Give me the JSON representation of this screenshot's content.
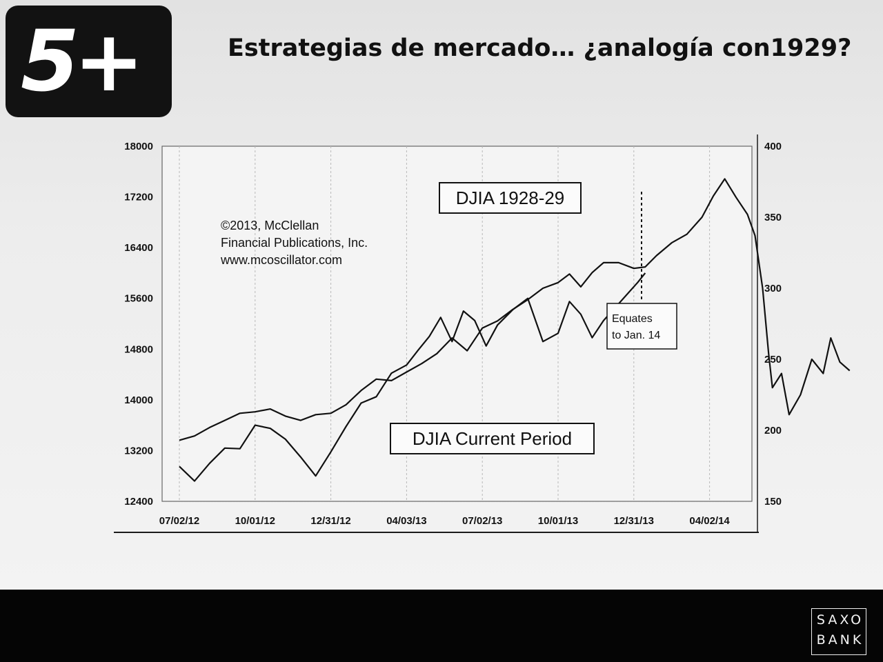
{
  "slide": {
    "logo_text": "5+",
    "title": "Estrategias de mercado… ¿analogía con1929?",
    "brand_line1": "SAXO",
    "brand_line2": "BANK"
  },
  "chart_data": {
    "type": "line",
    "title": "",
    "annotations": {
      "copyright": [
        "©2013, McClellan",
        "Financial Publications, Inc.",
        "www.mcoscillator.com"
      ],
      "callout": [
        "Equates",
        "to Jan. 14"
      ]
    },
    "left_axis": {
      "range": [
        12400,
        18000
      ],
      "ticks": [
        "18000",
        "17200",
        "16400",
        "15600",
        "14800",
        "14000",
        "13200",
        "12400"
      ]
    },
    "right_axis": {
      "range": [
        150,
        400
      ],
      "ticks": [
        "400",
        "350",
        "300",
        "250",
        "200",
        "150"
      ]
    },
    "x_axis": {
      "ticks": [
        "07/02/12",
        "10/01/12",
        "12/31/12",
        "04/03/13",
        "07/02/13",
        "10/01/13",
        "12/31/13",
        "04/02/14"
      ],
      "grid": "vertical dashed lines at each date tick"
    },
    "series": [
      {
        "name": "DJIA 1928-29",
        "axis": "right",
        "points": [
          [
            0,
            193
          ],
          [
            0.2,
            196
          ],
          [
            0.4,
            202
          ],
          [
            0.6,
            207
          ],
          [
            0.8,
            212
          ],
          [
            1.0,
            213
          ],
          [
            1.2,
            215
          ],
          [
            1.4,
            210
          ],
          [
            1.6,
            207
          ],
          [
            1.8,
            211
          ],
          [
            2.0,
            212
          ],
          [
            2.2,
            218
          ],
          [
            2.4,
            228
          ],
          [
            2.6,
            236
          ],
          [
            2.8,
            235
          ],
          [
            3.0,
            241
          ],
          [
            3.2,
            247
          ],
          [
            3.4,
            254
          ],
          [
            3.6,
            265
          ],
          [
            3.8,
            256
          ],
          [
            4.0,
            272
          ],
          [
            4.2,
            277
          ],
          [
            4.4,
            285
          ],
          [
            4.6,
            292
          ],
          [
            4.8,
            300
          ],
          [
            5.0,
            304
          ],
          [
            5.15,
            310
          ],
          [
            5.3,
            301
          ],
          [
            5.45,
            311
          ],
          [
            5.6,
            318
          ],
          [
            5.8,
            318
          ],
          [
            6.0,
            314
          ],
          [
            6.15,
            315
          ],
          [
            6.3,
            323
          ],
          [
            6.5,
            332
          ],
          [
            6.7,
            338
          ],
          [
            6.9,
            350
          ],
          [
            7.05,
            365
          ],
          [
            7.2,
            377
          ],
          [
            7.35,
            364
          ],
          [
            7.5,
            352
          ],
          [
            7.6,
            337
          ],
          [
            7.7,
            300
          ],
          [
            7.78,
            254
          ],
          [
            7.83,
            230
          ],
          [
            7.95,
            240
          ],
          [
            8.05,
            211
          ],
          [
            8.2,
            225
          ],
          [
            8.35,
            250
          ],
          [
            8.5,
            240
          ],
          [
            8.6,
            265
          ],
          [
            8.72,
            248
          ],
          [
            8.85,
            242
          ]
        ]
      },
      {
        "name": "DJIA Current Period",
        "axis": "left",
        "points": [
          [
            0,
            12950
          ],
          [
            0.2,
            12720
          ],
          [
            0.4,
            13000
          ],
          [
            0.6,
            13240
          ],
          [
            0.8,
            13230
          ],
          [
            1.0,
            13600
          ],
          [
            1.2,
            13550
          ],
          [
            1.4,
            13380
          ],
          [
            1.6,
            13100
          ],
          [
            1.8,
            12800
          ],
          [
            2.0,
            13180
          ],
          [
            2.2,
            13580
          ],
          [
            2.4,
            13950
          ],
          [
            2.6,
            14050
          ],
          [
            2.8,
            14420
          ],
          [
            3.0,
            14550
          ],
          [
            3.15,
            14780
          ],
          [
            3.3,
            15000
          ],
          [
            3.45,
            15300
          ],
          [
            3.6,
            14920
          ],
          [
            3.75,
            15400
          ],
          [
            3.9,
            15250
          ],
          [
            4.05,
            14850
          ],
          [
            4.2,
            15180
          ],
          [
            4.4,
            15420
          ],
          [
            4.6,
            15600
          ],
          [
            4.8,
            14920
          ],
          [
            5.0,
            15050
          ],
          [
            5.15,
            15550
          ],
          [
            5.3,
            15350
          ],
          [
            5.45,
            14980
          ],
          [
            5.6,
            15250
          ],
          [
            5.75,
            15450
          ],
          [
            5.9,
            15650
          ],
          [
            6.05,
            15850
          ],
          [
            6.15,
            16000
          ]
        ]
      }
    ]
  }
}
